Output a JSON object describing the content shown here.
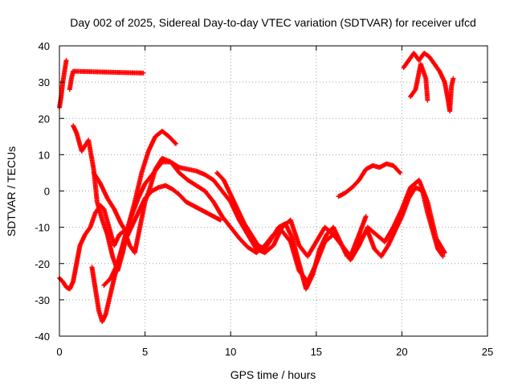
{
  "chart_data": {
    "type": "scatter",
    "title": "Day 002 of 2025, Sidereal Day-to-day VTEC variation (SDTVAR) for receiver ufcd",
    "xlabel": "GPS time / hours",
    "ylabel": "SDTVAR / TECUs",
    "xlim": [
      0,
      25
    ],
    "ylim": [
      -40,
      40
    ],
    "xticks": [
      0,
      5,
      10,
      15,
      20,
      25
    ],
    "yticks": [
      -40,
      -30,
      -20,
      -10,
      0,
      10,
      20,
      30,
      40
    ],
    "grid": true,
    "marker": "plus",
    "color": "#ff0000",
    "series": [
      {
        "name": "s1",
        "points": [
          [
            0,
            -24
          ],
          [
            0.2,
            -25
          ],
          [
            0.4,
            -26.5
          ],
          [
            0.6,
            -27
          ],
          [
            0.8,
            -25
          ],
          [
            1,
            -20
          ],
          [
            1.2,
            -15
          ],
          [
            1.5,
            -12
          ],
          [
            1.8,
            -10
          ],
          [
            2.1,
            -6
          ],
          [
            2.4,
            -4
          ],
          [
            2.6,
            -5
          ],
          [
            2.9,
            -10
          ],
          [
            3.2,
            -15
          ],
          [
            3.5,
            -12
          ],
          [
            3.8,
            -11
          ],
          [
            4.1,
            -15
          ],
          [
            4.4,
            -17
          ],
          [
            4.7,
            -10
          ],
          [
            5,
            -3
          ],
          [
            5.3,
            1
          ],
          [
            5.6,
            6
          ],
          [
            6,
            9
          ],
          [
            6.5,
            8
          ],
          [
            7,
            6.5
          ],
          [
            7.5,
            6
          ],
          [
            8,
            5.5
          ],
          [
            8.5,
            4.5
          ],
          [
            9,
            3
          ],
          [
            9.5,
            0
          ],
          [
            10,
            -3
          ],
          [
            10.5,
            -8
          ],
          [
            11,
            -12
          ],
          [
            11.5,
            -16
          ],
          [
            12,
            -17
          ],
          [
            12.5,
            -15
          ],
          [
            13,
            -10
          ],
          [
            13.5,
            -8
          ],
          [
            14,
            -15
          ],
          [
            14.5,
            -18
          ],
          [
            15,
            -14
          ],
          [
            15.5,
            -10
          ],
          [
            16,
            -12
          ],
          [
            16.5,
            -15
          ],
          [
            17,
            -19
          ],
          [
            17.5,
            -15
          ],
          [
            18,
            -10
          ],
          [
            18.5,
            -12
          ],
          [
            19,
            -14
          ],
          [
            19.5,
            -10
          ],
          [
            20,
            -5
          ],
          [
            20.5,
            1
          ],
          [
            21,
            3
          ],
          [
            21.5,
            -3
          ],
          [
            22,
            -13
          ],
          [
            22.5,
            -17
          ]
        ]
      },
      {
        "name": "s2",
        "points": [
          [
            0.8,
            18
          ],
          [
            1.0,
            16
          ],
          [
            1.3,
            11
          ],
          [
            1.7,
            14
          ],
          [
            2.0,
            6
          ],
          [
            2.2,
            -3
          ],
          [
            2.5,
            -8
          ],
          [
            2.8,
            -12
          ],
          [
            3.1,
            -18
          ],
          [
            3.4,
            -22
          ],
          [
            3.7,
            -17
          ],
          [
            4.0,
            -10
          ],
          [
            4.4,
            -3
          ],
          [
            4.8,
            5
          ],
          [
            5.2,
            11
          ],
          [
            5.6,
            15
          ],
          [
            6.0,
            16.5
          ],
          [
            6.4,
            15
          ],
          [
            6.8,
            13
          ]
        ]
      },
      {
        "name": "s3",
        "points": [
          [
            1.9,
            -21
          ],
          [
            2.1,
            -27
          ],
          [
            2.3,
            -33
          ],
          [
            2.5,
            -36
          ],
          [
            2.7,
            -34
          ],
          [
            3.0,
            -28
          ],
          [
            3.4,
            -20
          ],
          [
            3.8,
            -13
          ],
          [
            4.2,
            -7
          ],
          [
            4.6,
            -2
          ],
          [
            5.0,
            2
          ],
          [
            5.5,
            5
          ],
          [
            6.0,
            8
          ],
          [
            6.5,
            8
          ],
          [
            7.0,
            5
          ],
          [
            7.5,
            3
          ],
          [
            8.0,
            1.5
          ],
          [
            8.5,
            0
          ],
          [
            9.0,
            -3
          ],
          [
            9.5,
            -7
          ],
          [
            10.0,
            -10
          ],
          [
            10.5,
            -13
          ],
          [
            11.0,
            -15.5
          ],
          [
            11.5,
            -17
          ],
          [
            12.0,
            -15
          ],
          [
            12.5,
            -12
          ],
          [
            13.0,
            -11
          ],
          [
            13.5,
            -14
          ],
          [
            14.0,
            -22
          ],
          [
            14.5,
            -25
          ],
          [
            15.0,
            -20
          ],
          [
            15.5,
            -14
          ],
          [
            16.0,
            -12
          ],
          [
            16.5,
            -15
          ],
          [
            17.0,
            -18
          ],
          [
            17.5,
            -12
          ],
          [
            17.9,
            -7
          ]
        ]
      },
      {
        "name": "s4",
        "points": [
          [
            2.6,
            -26
          ],
          [
            3.0,
            -24
          ],
          [
            3.4,
            -20
          ],
          [
            3.8,
            -14
          ],
          [
            4.2,
            -10
          ],
          [
            4.6,
            -6
          ],
          [
            5.0,
            -2
          ],
          [
            5.4,
            0
          ],
          [
            5.8,
            1
          ],
          [
            6.2,
            1.5
          ],
          [
            6.6,
            0.5
          ],
          [
            7.0,
            -1
          ],
          [
            7.4,
            -3
          ],
          [
            7.8,
            -4
          ],
          [
            8.2,
            -5
          ],
          [
            8.6,
            -6
          ],
          [
            9.0,
            -7
          ],
          [
            9.4,
            -8
          ]
        ]
      },
      {
        "name": "s5",
        "points": [
          [
            9.2,
            5
          ],
          [
            9.6,
            3
          ],
          [
            10.0,
            -1
          ],
          [
            10.4,
            -5
          ],
          [
            10.8,
            -9
          ],
          [
            11.2,
            -12
          ],
          [
            11.6,
            -15
          ],
          [
            12.0,
            -16
          ],
          [
            12.4,
            -13
          ],
          [
            12.8,
            -10
          ],
          [
            13.2,
            -9
          ],
          [
            13.6,
            -13
          ],
          [
            14.0,
            -20
          ],
          [
            14.4,
            -27
          ],
          [
            14.8,
            -23
          ],
          [
            15.2,
            -16
          ],
          [
            15.6,
            -12
          ],
          [
            16.0,
            -10
          ],
          [
            16.4,
            -14
          ],
          [
            16.8,
            -18
          ],
          [
            17.2,
            -17
          ],
          [
            17.6,
            -13
          ],
          [
            18.0,
            -11
          ],
          [
            18.4,
            -16
          ],
          [
            18.8,
            -18
          ],
          [
            19.2,
            -15
          ],
          [
            19.6,
            -11
          ],
          [
            20.0,
            -7
          ],
          [
            20.4,
            -2
          ],
          [
            20.8,
            1
          ],
          [
            21.2,
            0
          ],
          [
            21.5,
            -6
          ],
          [
            21.8,
            -11
          ],
          [
            22.1,
            -16
          ],
          [
            22.4,
            -18
          ]
        ]
      },
      {
        "name": "s6",
        "points": [
          [
            16.3,
            -1.5
          ],
          [
            16.7,
            -0.5
          ],
          [
            17.1,
            1
          ],
          [
            17.5,
            3
          ],
          [
            17.9,
            6
          ],
          [
            18.3,
            7
          ],
          [
            18.7,
            6.5
          ],
          [
            19.1,
            7.5
          ],
          [
            19.5,
            7
          ],
          [
            19.9,
            5
          ]
        ]
      },
      {
        "name": "s7",
        "points": [
          [
            20.1,
            34
          ],
          [
            20.4,
            36
          ],
          [
            20.7,
            38
          ],
          [
            21.0,
            36
          ],
          [
            21.3,
            38
          ],
          [
            21.6,
            37
          ],
          [
            21.9,
            35
          ],
          [
            22.2,
            33
          ],
          [
            22.5,
            30
          ],
          [
            22.7,
            25
          ],
          [
            22.8,
            22
          ],
          [
            22.9,
            29
          ],
          [
            23.0,
            31
          ]
        ]
      },
      {
        "name": "s8",
        "points": [
          [
            20.5,
            26
          ],
          [
            20.8,
            28
          ],
          [
            21.1,
            35
          ],
          [
            21.4,
            31
          ],
          [
            21.5,
            25
          ]
        ]
      },
      {
        "name": "s9",
        "points": [
          [
            0.0,
            23
          ],
          [
            0.1,
            26
          ],
          [
            0.2,
            30
          ],
          [
            0.3,
            33
          ],
          [
            0.4,
            36
          ]
        ]
      },
      {
        "name": "s10",
        "points": [
          [
            0.6,
            28
          ],
          [
            0.7,
            31
          ],
          [
            0.8,
            33
          ],
          [
            4.9,
            32.5
          ]
        ]
      },
      {
        "name": "s11",
        "points": [
          [
            2.0,
            5
          ],
          [
            2.4,
            2
          ],
          [
            2.8,
            -2
          ],
          [
            3.2,
            -5
          ],
          [
            3.6,
            -9
          ],
          [
            4.0,
            -12
          ]
        ]
      }
    ]
  }
}
